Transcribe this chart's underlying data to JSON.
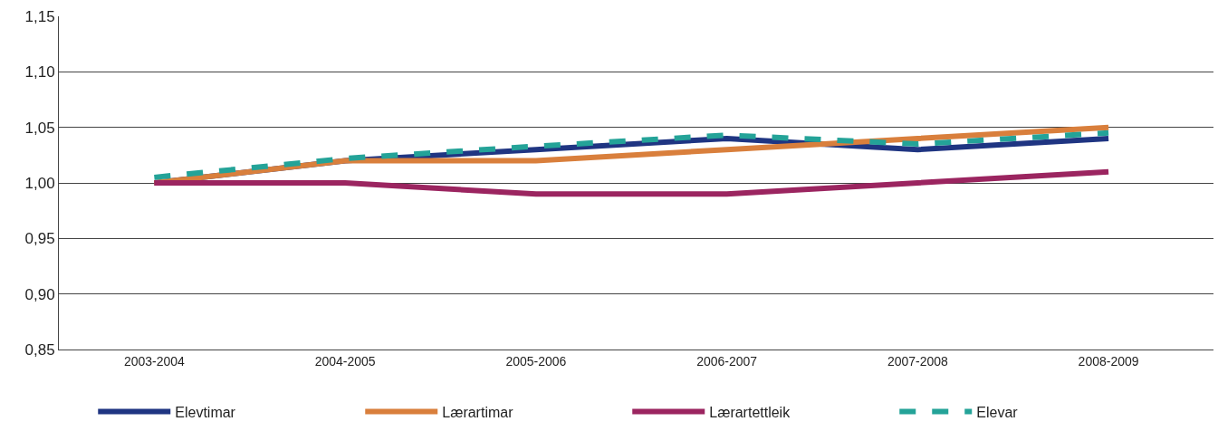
{
  "chart_data": {
    "type": "line",
    "categories": [
      "2003-2004",
      "2004-2005",
      "2005-2006",
      "2006-2007",
      "2007-2008",
      "2008-2009"
    ],
    "series": [
      {
        "name": "Elevtimar",
        "color": "#1f3582",
        "values": [
          1.0,
          1.02,
          1.03,
          1.04,
          1.03,
          1.04
        ]
      },
      {
        "name": "Lærartimar",
        "color": "#d97f3c",
        "values": [
          1.0,
          1.02,
          1.02,
          1.03,
          1.04,
          1.05
        ]
      },
      {
        "name": "Lærartettleik",
        "color": "#9b2560",
        "values": [
          1.0,
          1.0,
          0.99,
          0.99,
          1.0,
          1.01
        ]
      },
      {
        "name": "Elevar",
        "color": "#24a398",
        "values": [
          1.005,
          1.022,
          1.033,
          1.043,
          1.035,
          1.045
        ],
        "line_style": "dashed"
      }
    ],
    "ylim": [
      0.85,
      1.15
    ],
    "yticks": [
      {
        "value": 0.85,
        "label": "0,85"
      },
      {
        "value": 0.9,
        "label": "0,90"
      },
      {
        "value": 0.95,
        "label": "0,95"
      },
      {
        "value": 1.0,
        "label": "1,00"
      },
      {
        "value": 1.05,
        "label": "1,05"
      },
      {
        "value": 1.1,
        "label": "1,10"
      },
      {
        "value": 1.15,
        "label": "1,15"
      }
    ],
    "grid": "y",
    "legend": "bottom",
    "marker": "none",
    "line_style": "solid"
  }
}
